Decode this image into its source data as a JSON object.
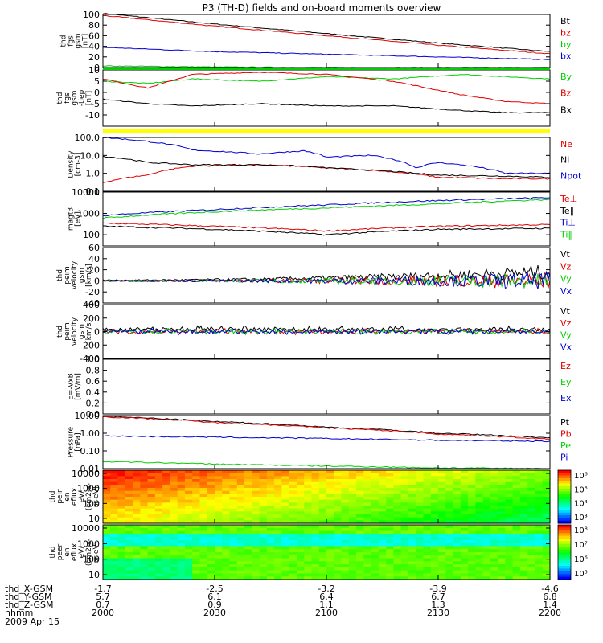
{
  "title": "P3 (TH-D) fields and on-board moments overview",
  "date_label": "2009 Apr 15",
  "colors": {
    "black": "#000000",
    "red": "#e00000",
    "green": "#00d000",
    "blue": "#0000d0",
    "yellow": "#ffff00"
  },
  "chart_data": [
    {
      "id": "fgs-mag",
      "type": "line",
      "ylabel": [
        "thd",
        "fgs",
        "gsm",
        "[nT]"
      ],
      "ylim": [
        0,
        100
      ],
      "yticks": [
        "0",
        "20",
        "40",
        "60",
        "80",
        "100"
      ],
      "x": [
        0,
        0.25,
        0.5,
        0.75,
        1
      ],
      "series": [
        {
          "name": "Bt",
          "color": "black",
          "values": [
            102,
            82,
            64,
            46,
            30
          ]
        },
        {
          "name": "bz",
          "color": "red",
          "values": [
            98,
            78,
            60,
            42,
            26
          ]
        },
        {
          "name": "by",
          "color": "green",
          "values": [
            3,
            1,
            0,
            0,
            0
          ]
        },
        {
          "name": "bx",
          "color": "blue",
          "values": [
            38,
            30,
            25,
            20,
            15
          ]
        }
      ]
    },
    {
      "id": "fgs-field",
      "type": "line",
      "ylabel": [
        "thd",
        "fgs",
        "gsm",
        "-tiep",
        "[nT]"
      ],
      "ylim": [
        -15,
        10
      ],
      "yticks": [
        "-10",
        "-5",
        "0",
        "5",
        "10"
      ],
      "x": [
        0,
        0.1,
        0.2,
        0.35,
        0.5,
        0.65,
        0.8,
        0.9,
        1
      ],
      "series": [
        {
          "name": "By",
          "color": "green",
          "values": [
            5,
            4,
            6,
            5,
            7,
            6,
            8,
            7,
            6
          ]
        },
        {
          "name": "Bz",
          "color": "red",
          "values": [
            6,
            2,
            8,
            9,
            8,
            5,
            -1,
            -4,
            -5
          ]
        },
        {
          "name": "Bx",
          "color": "black",
          "values": [
            -3,
            -5,
            -6,
            -5,
            -6,
            -6,
            -8,
            -9,
            -9
          ]
        }
      ]
    },
    {
      "id": "density",
      "type": "line",
      "log": true,
      "ylabel": [
        "Density",
        "[cm-3]"
      ],
      "ylim": [
        0.1,
        100
      ],
      "yticks": [
        "0.1",
        "1.0",
        "10.0",
        "100.0"
      ],
      "x": [
        0,
        0.1,
        0.2,
        0.35,
        0.45,
        0.5,
        0.6,
        0.7,
        0.75,
        0.9,
        1
      ],
      "series": [
        {
          "name": "Ne",
          "color": "red",
          "values": [
            0.3,
            0.8,
            2.5,
            3,
            2.4,
            2,
            1.5,
            0.9,
            0.6,
            0.5,
            0.5
          ]
        },
        {
          "name": "Ni",
          "color": "black",
          "values": [
            9,
            4,
            3,
            3,
            2.5,
            2,
            1.5,
            1,
            0.8,
            0.7,
            0.6
          ]
        },
        {
          "name": "Npot",
          "color": "blue",
          "values": [
            100,
            60,
            20,
            12,
            18,
            8,
            10,
            2,
            4,
            1,
            1
          ]
        }
      ]
    },
    {
      "id": "temperature",
      "type": "line",
      "log": true,
      "ylabel": [
        "magt3",
        "[eV]"
      ],
      "ylim": [
        30,
        10000
      ],
      "yticks": [
        "100",
        "1000",
        "10000"
      ],
      "x": [
        0,
        0.25,
        0.5,
        0.75,
        1
      ],
      "series": [
        {
          "name": "Te⊥",
          "color": "red",
          "values": [
            350,
            250,
            150,
            250,
            300
          ]
        },
        {
          "name": "Te∥",
          "color": "black",
          "values": [
            250,
            180,
            100,
            180,
            200
          ]
        },
        {
          "name": "Ti⊥",
          "color": "blue",
          "values": [
            800,
            1500,
            2500,
            4000,
            5500
          ]
        },
        {
          "name": "Ti∥",
          "color": "green",
          "values": [
            600,
            1200,
            1800,
            2800,
            4500
          ]
        }
      ]
    },
    {
      "id": "peim-velocity",
      "type": "line",
      "ylabel": [
        "thd",
        "peim",
        "velocity",
        "gsm",
        "[km/s]"
      ],
      "ylim": [
        -40,
        60
      ],
      "yticks": [
        "-40",
        "-20",
        "0",
        "20",
        "40",
        "60"
      ],
      "series": [
        {
          "name": "Vt",
          "color": "black"
        },
        {
          "name": "Vz",
          "color": "red"
        },
        {
          "name": "Vy",
          "color": "green"
        },
        {
          "name": "Vx",
          "color": "blue"
        }
      ]
    },
    {
      "id": "peem-velocity",
      "type": "line",
      "ylabel": [
        "thd",
        "peim",
        "velocity",
        "gsm",
        "[km/s]"
      ],
      "ylim": [
        -400,
        400
      ],
      "yticks": [
        "-400",
        "-200",
        "0",
        "200",
        "400"
      ],
      "series": [
        {
          "name": "Vt",
          "color": "black"
        },
        {
          "name": "Vz",
          "color": "red"
        },
        {
          "name": "Vy",
          "color": "green"
        },
        {
          "name": "Vx",
          "color": "blue"
        }
      ]
    },
    {
      "id": "efield",
      "type": "line",
      "ylabel": [
        "E=-VxB",
        "[mV/m]"
      ],
      "ylim": [
        0,
        1
      ],
      "yticks": [
        "0.0",
        "0.2",
        "0.4",
        "0.6",
        "0.8",
        "1.0"
      ],
      "series": [
        {
          "name": "Ez",
          "color": "red"
        },
        {
          "name": "Ey",
          "color": "green"
        },
        {
          "name": "Ex",
          "color": "blue"
        }
      ]
    },
    {
      "id": "pressure",
      "type": "line",
      "log": true,
      "ylabel": [
        "Pressure",
        "[nPa]"
      ],
      "ylim": [
        0.01,
        10
      ],
      "yticks": [
        "0.01",
        "0.10",
        "1.00",
        "10.00"
      ],
      "x": [
        0,
        0.25,
        0.5,
        0.75,
        1
      ],
      "series": [
        {
          "name": "Pt",
          "color": "black",
          "values": [
            9,
            4.5,
            2.2,
            1,
            0.55
          ]
        },
        {
          "name": "Pb",
          "color": "red",
          "values": [
            8.5,
            4,
            2,
            0.9,
            0.45
          ]
        },
        {
          "name": "Pe",
          "color": "green",
          "values": [
            0.025,
            0.018,
            0.014,
            0.011,
            0.01
          ]
        },
        {
          "name": "Pi",
          "color": "blue",
          "values": [
            0.7,
            0.6,
            0.5,
            0.4,
            0.35
          ]
        }
      ]
    },
    {
      "id": "ion-spectrogram",
      "type": "heatmap",
      "ylabel": [
        "thd",
        "peir",
        "en",
        "eflux",
        "eV/",
        "(cm2-s-",
        "sr-eV)"
      ],
      "yticks": [
        "10",
        "100",
        "1000",
        "10000"
      ],
      "colorbar_ticks": [
        "10³",
        "10⁴",
        "10⁵",
        "10⁶"
      ]
    },
    {
      "id": "electron-spectrogram",
      "type": "heatmap",
      "ylabel": [
        "thd",
        "peer",
        "en",
        "eflux",
        "eV/",
        "(cm2-s-",
        "sr-eV)"
      ],
      "yticks": [
        "10",
        "100",
        "1000",
        "10000"
      ],
      "colorbar_ticks": [
        "10⁵",
        "10⁶",
        "10⁷",
        "10⁸"
      ]
    }
  ],
  "x_axis": {
    "row_labels": [
      "thd_X-GSM",
      "thd_Y-GSM",
      "thd_Z-GSM",
      "hhmm"
    ],
    "columns": [
      [
        "-1.7",
        "5.7",
        "0.7",
        "2000"
      ],
      [
        "-2.5",
        "6.1",
        "0.9",
        "2030"
      ],
      [
        "-3.2",
        "6.4",
        "1.1",
        "2100"
      ],
      [
        "-3.9",
        "6.7",
        "1.3",
        "2130"
      ],
      [
        "-4.6",
        "6.8",
        "1.4",
        "2200"
      ]
    ]
  }
}
